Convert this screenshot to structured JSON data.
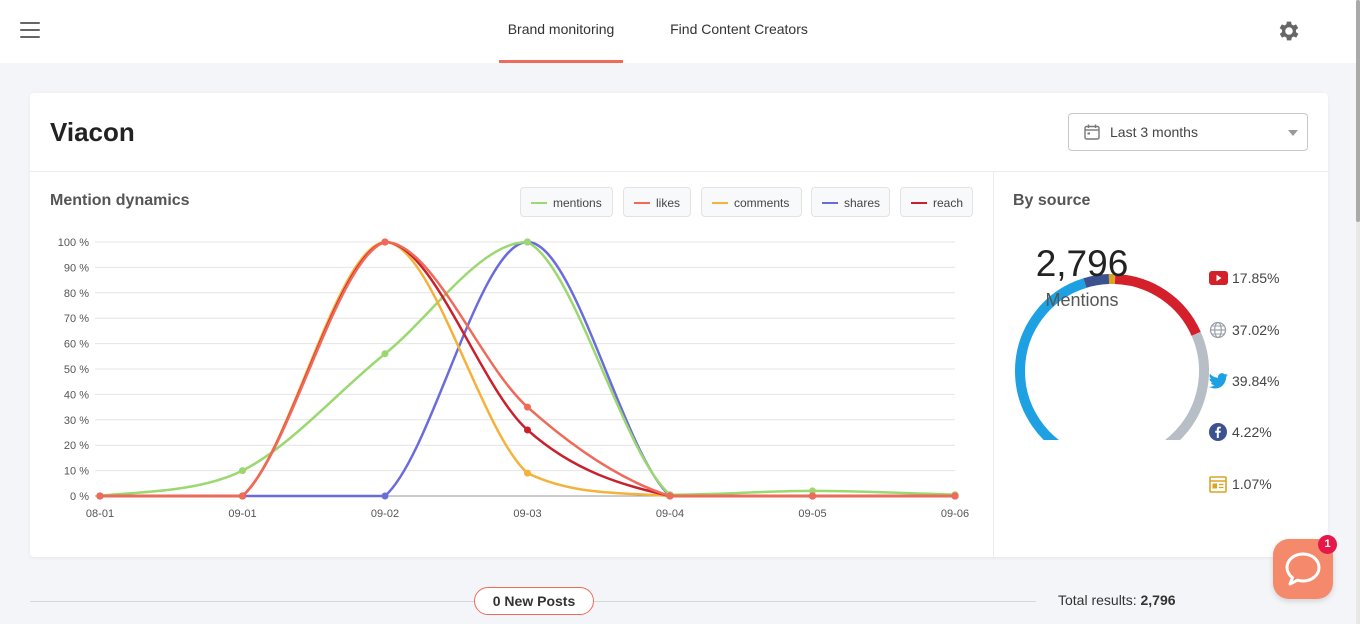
{
  "nav": {
    "tabs": [
      {
        "label": "Brand monitoring",
        "active": true
      },
      {
        "label": "Find Content Creators",
        "active": false
      }
    ],
    "icons": {
      "menu": "hamburger-menu-icon",
      "settings": "gear-icon"
    }
  },
  "brand": {
    "name": "Viacon"
  },
  "date_filter": {
    "label": "Last 3 months",
    "icon": "calendar-icon"
  },
  "mention_dynamics": {
    "title": "Mention dynamics",
    "legend": [
      {
        "label": "mentions",
        "color": "#9bd870"
      },
      {
        "label": "likes",
        "color": "#f06a5a"
      },
      {
        "label": "comments",
        "color": "#f5b23a"
      },
      {
        "label": "shares",
        "color": "#6a6cdc"
      },
      {
        "label": "reach",
        "color": "#c8202c"
      }
    ]
  },
  "chart_data": {
    "type": "line",
    "x": [
      "08-01",
      "09-01",
      "09-02",
      "09-03",
      "09-04",
      "09-05",
      "09-06"
    ],
    "y_ticks": [
      "0 %",
      "10 %",
      "20 %",
      "30 %",
      "40 %",
      "50 %",
      "60 %",
      "70 %",
      "80 %",
      "90 %",
      "100 %"
    ],
    "ylim": [
      0,
      100
    ],
    "grid": true,
    "series": [
      {
        "name": "shares",
        "color": "#6a6cdc",
        "values": [
          0,
          0,
          0,
          100,
          0,
          0,
          0
        ]
      },
      {
        "name": "mentions",
        "color": "#9bd870",
        "values": [
          0,
          10,
          56,
          100,
          0.5,
          2,
          0.5
        ]
      },
      {
        "name": "comments",
        "color": "#f5b23a",
        "values": [
          0,
          0,
          100,
          9,
          0,
          0,
          0
        ]
      },
      {
        "name": "reach",
        "color": "#c8202c",
        "values": [
          0,
          0,
          100,
          26,
          0,
          0,
          0
        ]
      },
      {
        "name": "likes",
        "color": "#f06a5a",
        "values": [
          0,
          0,
          100,
          35,
          0,
          0,
          0
        ]
      }
    ]
  },
  "by_source": {
    "title": "By source",
    "total": "2,796",
    "total_label": "Mentions",
    "sources": [
      {
        "icon": "youtube-icon",
        "pct_label": "17.85%",
        "value": 17.85,
        "color": "#d3202a"
      },
      {
        "icon": "web-globe-icon",
        "pct_label": "37.02%",
        "value": 37.02,
        "color": "#b8bec6"
      },
      {
        "icon": "twitter-icon",
        "pct_label": "39.84%",
        "value": 39.84,
        "color": "#1da1e2"
      },
      {
        "icon": "facebook-icon",
        "pct_label": "4.22%",
        "value": 4.22,
        "color": "#3b5190"
      },
      {
        "icon": "news-icon",
        "pct_label": "1.07%",
        "value": 1.07,
        "color": "#d9a527"
      }
    ]
  },
  "feed": {
    "new_posts": "0 New Posts",
    "total_label": "Total results:",
    "total_value": "2,796"
  },
  "chat": {
    "badge": "1",
    "icon": "chat-bubble-icon"
  }
}
